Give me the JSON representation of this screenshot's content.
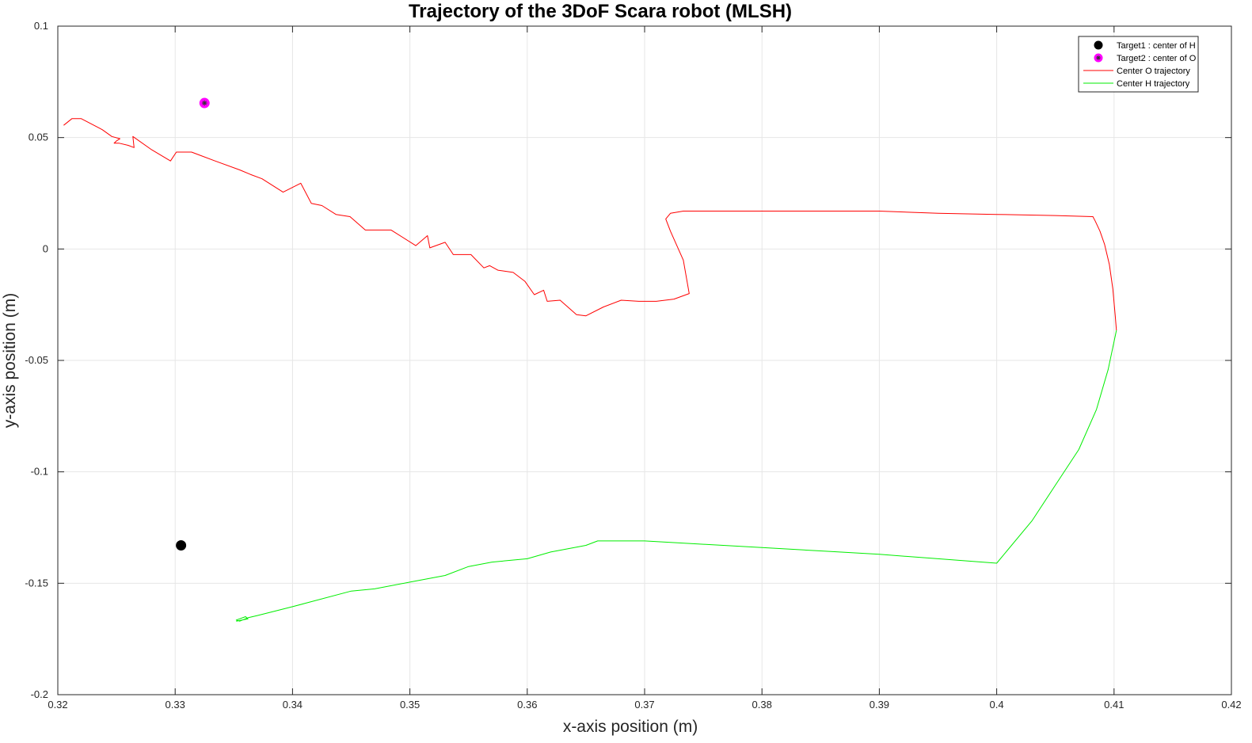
{
  "chart_data": {
    "type": "line",
    "title": "Trajectory of the 3DoF Scara robot (MLSH)",
    "xlabel": "x-axis position (m)",
    "ylabel": "y-axis position (m)",
    "xlim": [
      0.32,
      0.42
    ],
    "ylim": [
      -0.2,
      0.1
    ],
    "xticks": [
      "0.32",
      "0.33",
      "0.34",
      "0.35",
      "0.36",
      "0.37",
      "0.38",
      "0.39",
      "0.4",
      "0.41",
      "0.42"
    ],
    "yticks": [
      "-0.2",
      "-0.15",
      "-0.1",
      "-0.05",
      "0",
      "0.05",
      "0.1"
    ],
    "grid": true,
    "legend_position": "top-right",
    "series": [
      {
        "name": "Target1 : center of H",
        "kind": "marker",
        "marker": "filled-circle",
        "color": "#000000",
        "x": [
          0.3305
        ],
        "y": [
          -0.133
        ]
      },
      {
        "name": "Target2 : center of O",
        "kind": "marker",
        "marker": "circle-star",
        "color": "#ff00ff",
        "x": [
          0.3325
        ],
        "y": [
          0.0655
        ]
      },
      {
        "name": "Center O trajectory",
        "kind": "line",
        "color": "#ff0000",
        "x": [
          0.4102,
          0.4101,
          0.4099,
          0.4096,
          0.4092,
          0.4088,
          0.4084,
          0.4082,
          0.405,
          0.4,
          0.395,
          0.39,
          0.385,
          0.38,
          0.375,
          0.3733,
          0.3722,
          0.3718,
          0.3722,
          0.3733,
          0.3738,
          0.3725,
          0.371,
          0.3695,
          0.368,
          0.3665,
          0.365,
          0.3642,
          0.3628,
          0.3617,
          0.3614,
          0.3606,
          0.3598,
          0.3588,
          0.3575,
          0.3568,
          0.3563,
          0.3552,
          0.3537,
          0.353,
          0.3517,
          0.3515,
          0.3505,
          0.3484,
          0.3462,
          0.3449,
          0.3437,
          0.3425,
          0.3416,
          0.3407,
          0.3392,
          0.3374,
          0.3364,
          0.3355,
          0.3334,
          0.3314,
          0.3301,
          0.3296,
          0.328,
          0.3264,
          0.3265,
          0.326,
          0.3252,
          0.3248,
          0.325,
          0.3253,
          0.3246,
          0.3238,
          0.322,
          0.3212,
          0.3205
        ],
        "y": [
          -0.0365,
          -0.03,
          -0.018,
          -0.007,
          0.002,
          0.008,
          0.0125,
          0.0145,
          0.015,
          0.0155,
          0.016,
          0.017,
          0.017,
          0.017,
          0.017,
          0.017,
          0.016,
          0.0135,
          0.008,
          -0.005,
          -0.02,
          -0.0225,
          -0.0235,
          -0.0235,
          -0.023,
          -0.026,
          -0.03,
          -0.0295,
          -0.023,
          -0.0235,
          -0.0185,
          -0.0205,
          -0.0145,
          -0.0105,
          -0.0095,
          -0.0075,
          -0.0085,
          -0.0025,
          -0.0025,
          0.003,
          0.0005,
          0.006,
          0.0015,
          0.0085,
          0.0085,
          0.0145,
          0.0155,
          0.0195,
          0.0205,
          0.0295,
          0.0255,
          0.0315,
          0.0335,
          0.0355,
          0.0395,
          0.0435,
          0.0435,
          0.0395,
          0.0445,
          0.0505,
          0.0455,
          0.0465,
          0.0475,
          0.0475,
          0.0485,
          0.0495,
          0.0505,
          0.0535,
          0.0585,
          0.0585,
          0.0555
        ]
      },
      {
        "name": "Center H trajectory",
        "kind": "line",
        "color": "#00ee00",
        "x": [
          0.4102,
          0.4095,
          0.4085,
          0.407,
          0.405,
          0.403,
          0.4,
          0.395,
          0.39,
          0.385,
          0.38,
          0.375,
          0.37,
          0.366,
          0.365,
          0.362,
          0.36,
          0.357,
          0.355,
          0.353,
          0.35,
          0.347,
          0.345,
          0.34,
          0.3385,
          0.337,
          0.3362,
          0.3355,
          0.3352,
          0.336,
          0.3362,
          0.3352
        ],
        "y": [
          -0.0365,
          -0.054,
          -0.072,
          -0.09,
          -0.106,
          -0.122,
          -0.141,
          -0.139,
          -0.137,
          -0.1355,
          -0.134,
          -0.1325,
          -0.131,
          -0.131,
          -0.133,
          -0.136,
          -0.139,
          -0.1405,
          -0.1425,
          -0.1465,
          -0.1495,
          -0.1525,
          -0.1535,
          -0.1605,
          -0.1625,
          -0.1645,
          -0.1655,
          -0.167,
          -0.1665,
          -0.165,
          -0.166,
          -0.167
        ]
      }
    ]
  }
}
